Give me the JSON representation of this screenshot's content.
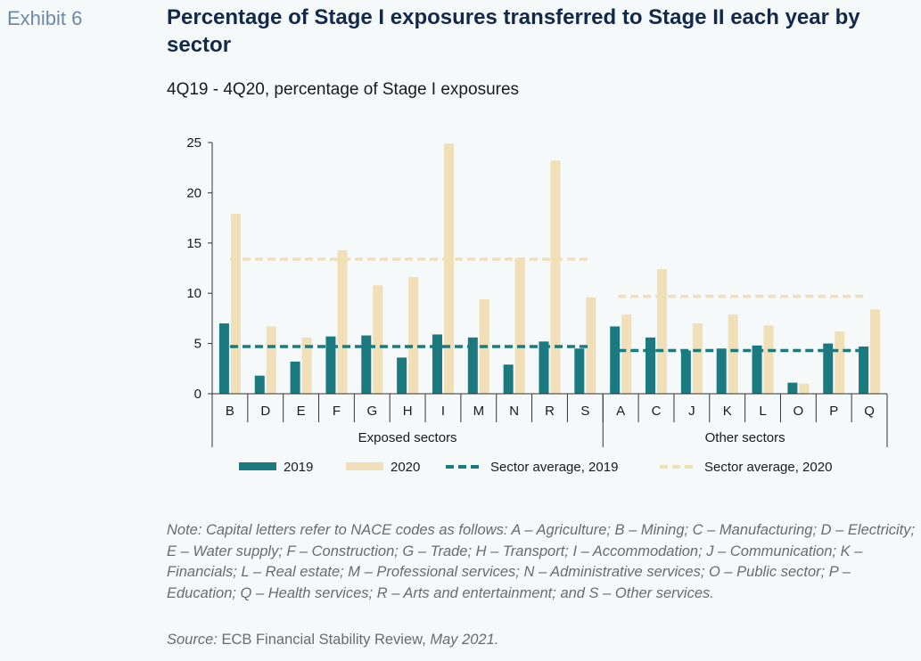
{
  "exhibit_label": "Exhibit 6",
  "note": "Note: Capital letters refer to NACE codes as follows: A – Agriculture; B – Mining; C – Manufacturing; D – Electricity; E – Water supply; F – Construction; G – Trade; H – Transport; I – Accommodation; J – Communication; K – Financials; L – Real estate; M – Professional services; N – Administrative services; O – Public sector; P – Education; Q – Health services; R – Arts and entertainment; and S – Other services.",
  "source": {
    "label": "Source:",
    "text": "ECB Financial Stability Review,",
    "date": "May 2021."
  },
  "colors": {
    "series_2019": "#1b7a80",
    "series_2020": "#f0dfb7",
    "avg_2019": "#1b7a80",
    "avg_2020": "#f0dfb7"
  },
  "chart_data": {
    "type": "bar",
    "title": "Percentage of Stage I exposures transferred to Stage II each year by sector",
    "subtitle": "4Q19 - 4Q20, percentage of Stage I exposures",
    "categories": [
      "B",
      "D",
      "E",
      "F",
      "G",
      "H",
      "I",
      "M",
      "N",
      "R",
      "S",
      "A",
      "C",
      "J",
      "K",
      "L",
      "O",
      "P",
      "Q"
    ],
    "groups": [
      {
        "name": "Exposed sectors",
        "categories": [
          "B",
          "D",
          "E",
          "F",
          "G",
          "H",
          "I",
          "M",
          "N",
          "R",
          "S"
        ]
      },
      {
        "name": "Other sectors",
        "categories": [
          "A",
          "C",
          "J",
          "K",
          "L",
          "O",
          "P",
          "Q"
        ]
      }
    ],
    "series": [
      {
        "name": "2019",
        "values": [
          7.0,
          1.8,
          3.2,
          5.7,
          5.8,
          3.6,
          5.9,
          5.6,
          2.9,
          5.2,
          4.5,
          6.7,
          5.6,
          4.3,
          4.5,
          4.8,
          1.1,
          5.0,
          4.7
        ]
      },
      {
        "name": "2020",
        "values": [
          17.9,
          6.7,
          5.6,
          14.3,
          10.8,
          11.6,
          24.9,
          9.4,
          13.5,
          23.2,
          9.6,
          7.9,
          12.4,
          7.0,
          7.9,
          6.8,
          1.0,
          6.2,
          8.4
        ]
      }
    ],
    "sector_averages": [
      {
        "name": "Sector average, 2019",
        "exposed": 4.7,
        "other": 4.3
      },
      {
        "name": "Sector average, 2020",
        "exposed": 13.4,
        "other": 9.7
      }
    ],
    "xlabel": "",
    "ylabel": "",
    "ylim": [
      0,
      25
    ],
    "yticks": [
      0,
      5,
      10,
      15,
      20,
      25
    ],
    "grid": false,
    "legend_position": "bottom"
  }
}
